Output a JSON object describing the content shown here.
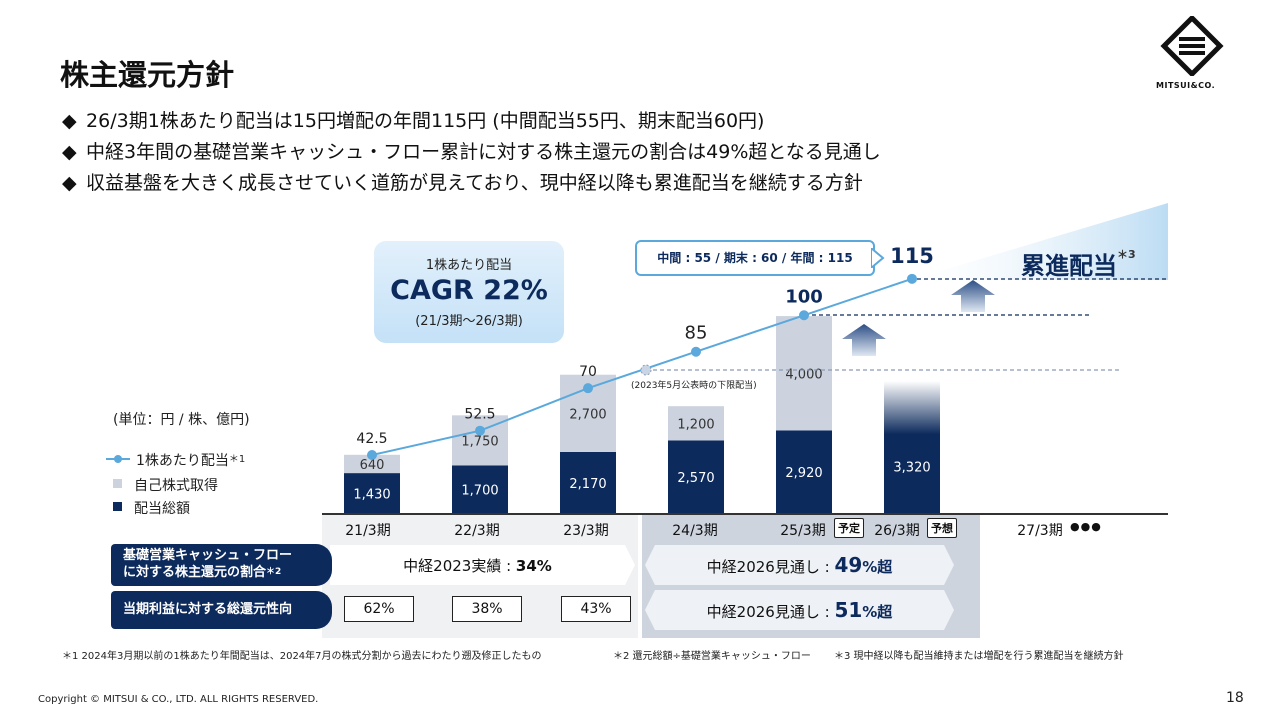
{
  "title": "株主還元方針",
  "bullets": [
    "26/3期1株あたり配当は15円増配の年間115円 (中間配当55円、期末配当60円)",
    "中経3年間の基礎営業キャッシュ・フロー累計に対する株主還元の割合は49%超となる見通し",
    "収益基盤を大きく成長させていく道筋が見えており、現中経以降も累進配当を継続する方針"
  ],
  "bullet_mark": "◆",
  "logo_text": "MITSUI&CO.",
  "unit": "(単位：円 / 株、億円)",
  "legend": {
    "dps": "1株あたり配当",
    "dps_note": "＊1",
    "buyback": "自己株式取得",
    "dividend": "配当総額"
  },
  "cagr": {
    "line1": "1株あたり配当",
    "line2": "CAGR 22%",
    "line3": "(21/3期～26/3期)"
  },
  "callout": "中間 : 55 / 期末 : 60 / 年間 : 115",
  "progressive": {
    "label": "累進配当",
    "note": "＊3"
  },
  "guideline_note": "(2023年5月公表時の下限配当)",
  "badges": {
    "b25": "予定",
    "b26": "予想"
  },
  "rows": {
    "row1_label": [
      "基礎営業キャッシュ・フロー",
      "に対する株主還元の割合"
    ],
    "row1_note": "＊2",
    "row2_label": "当期利益に対する総還元性向",
    "mtp2023_prefix": "中経2023実績 : ",
    "mtp2023_value": "34%",
    "mtp2026_prefix": "中経2026見通し : ",
    "mtp2026_r1_value": "49",
    "mtp2026_r2_value": "51",
    "mtp2026_suffix": "%超",
    "payout": [
      "62%",
      "38%",
      "43%"
    ]
  },
  "notes": [
    "＊1 2024年3月期以前の1株あたり年間配当は、2024年7月の株式分割から過去にわたり遡及修正したもの",
    "＊2 還元総額÷基礎営業キャッシュ・フロー",
    "＊3 現中経以降も配当維持または増配を行う累進配当を継続方針"
  ],
  "copyright": "Copyright © MITSUI & CO., LTD. ALL RIGHTS RESERVED.",
  "page": "18",
  "colors": {
    "navy": "#0c2a5c",
    "gray": "#ccd3de",
    "line": "#5aa8dc"
  },
  "chart_data": {
    "type": "bar",
    "categories": [
      "21/3期",
      "22/3期",
      "23/3期",
      "24/3期",
      "25/3期",
      "26/3期",
      "27/3期"
    ],
    "extra_label": "●●●",
    "series": [
      {
        "name": "配当総額",
        "values": [
          1430,
          1700,
          2170,
          2570,
          2920,
          3320,
          null
        ],
        "labels": [
          "1,430",
          "1,700",
          "2,170",
          "2,570",
          "2,920",
          "3,320",
          ""
        ]
      },
      {
        "name": "自己株式取得",
        "values": [
          640,
          1750,
          2700,
          1200,
          4000,
          null,
          null
        ],
        "labels": [
          "640",
          "1,750",
          "2,700",
          "1,200",
          "4,000",
          "",
          ""
        ]
      },
      {
        "name": "1株あたり配当",
        "values": [
          42.5,
          52.5,
          70,
          85,
          100,
          115,
          null
        ],
        "labels": [
          "42.5",
          "52.5",
          "70",
          "85",
          "100",
          "115",
          ""
        ]
      }
    ],
    "guideline_dps": 70
  }
}
